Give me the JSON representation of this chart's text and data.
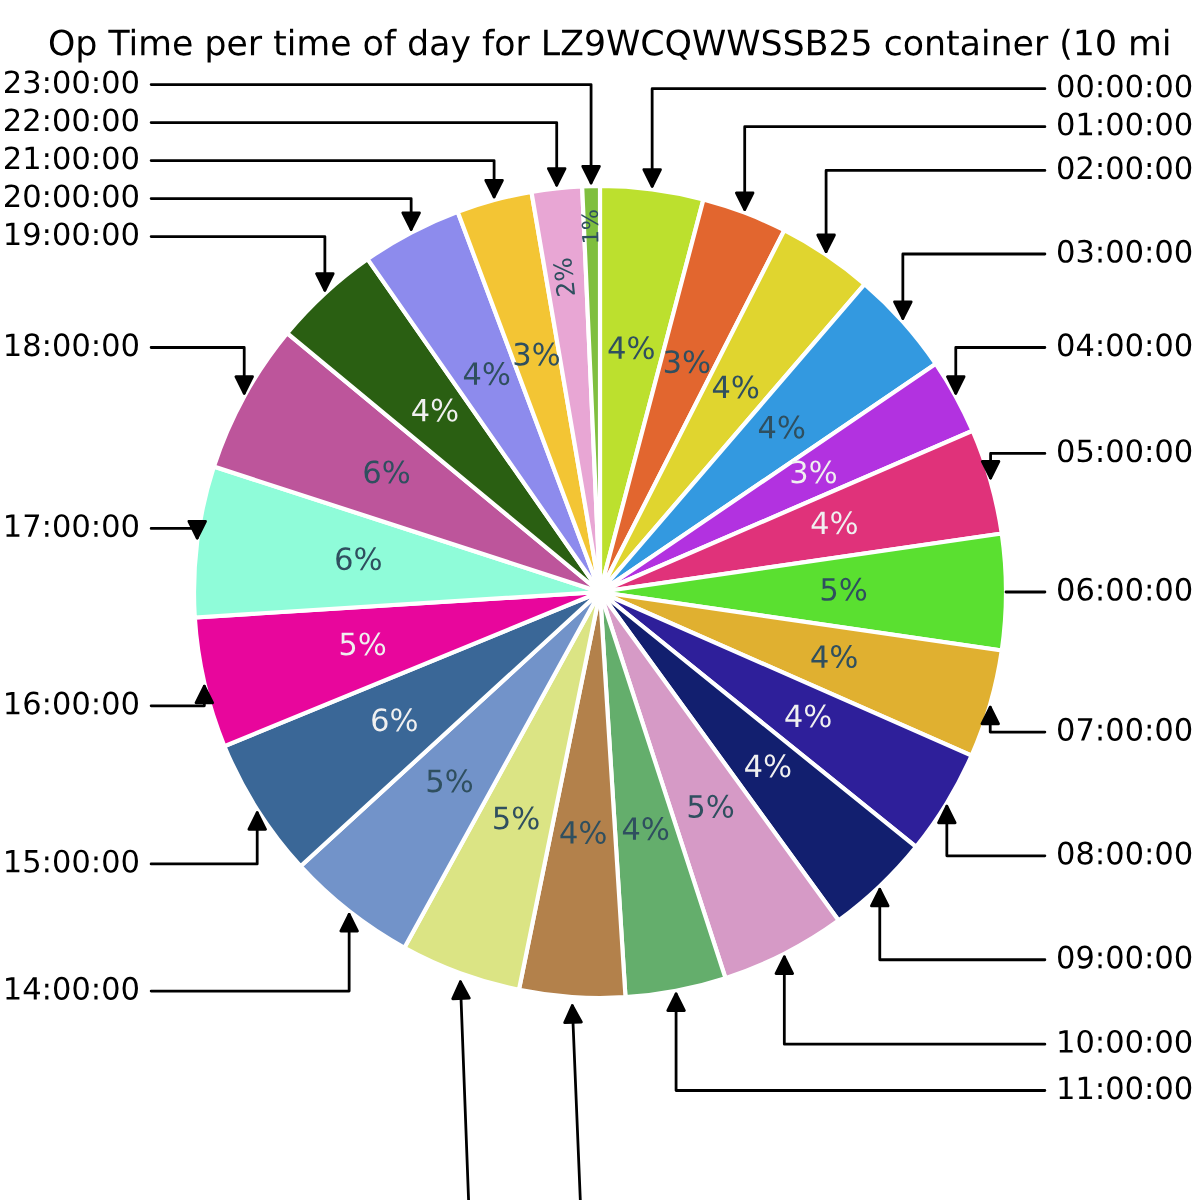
{
  "chart_data": {
    "type": "pie",
    "title": "Op Time per time of day for LZ9WCQWWSSB25 container (10 mi",
    "categories": [
      "00:00:00",
      "01:00:00",
      "02:00:00",
      "03:00:00",
      "04:00:00",
      "05:00:00",
      "06:00:00",
      "07:00:00",
      "08:00:00",
      "09:00:00",
      "10:00:00",
      "11:00:00",
      null,
      null,
      "14:00:00",
      "15:00:00",
      "16:00:00",
      "17:00:00",
      "18:00:00",
      "19:00:00",
      "20:00:00",
      "21:00:00",
      "22:00:00",
      "23:00:00"
    ],
    "values": [
      4.1,
      3.4,
      3.8,
      4.2,
      3.0,
      4.2,
      4.6,
      4.3,
      4.2,
      4.2,
      5.0,
      4.0,
      4.2,
      4.8,
      5.2,
      5.6,
      5.2,
      6.0,
      6.0,
      4.3,
      4.0,
      3.0,
      2.0,
      0.7
    ],
    "value_labels": [
      "4%",
      "3%",
      "4%",
      "4%",
      "3%",
      "4%",
      "5%",
      "4%",
      "4%",
      "4%",
      "5%",
      "4%",
      "4%",
      "5%",
      "5%",
      "6%",
      "5%",
      "6%",
      "6%",
      "4%",
      "4%",
      "3%",
      "2%",
      "1%"
    ],
    "colors": [
      "#bce02e",
      "#e2662f",
      "#e0d52f",
      "#3399e0",
      "#b232e0",
      "#e0327a",
      "#5ae030",
      "#e0b030",
      "#2e1f9a",
      "#121f6f",
      "#d69ac6",
      "#64ae6c",
      "#b3814b",
      "#dbe484",
      "#7293c9",
      "#3a6797",
      "#e8069c",
      "#8ffcd9",
      "#bd559b",
      "#2a5f12",
      "#8d8bed",
      "#f3c534",
      "#e8a6d4",
      "#7fbf3f"
    ]
  }
}
